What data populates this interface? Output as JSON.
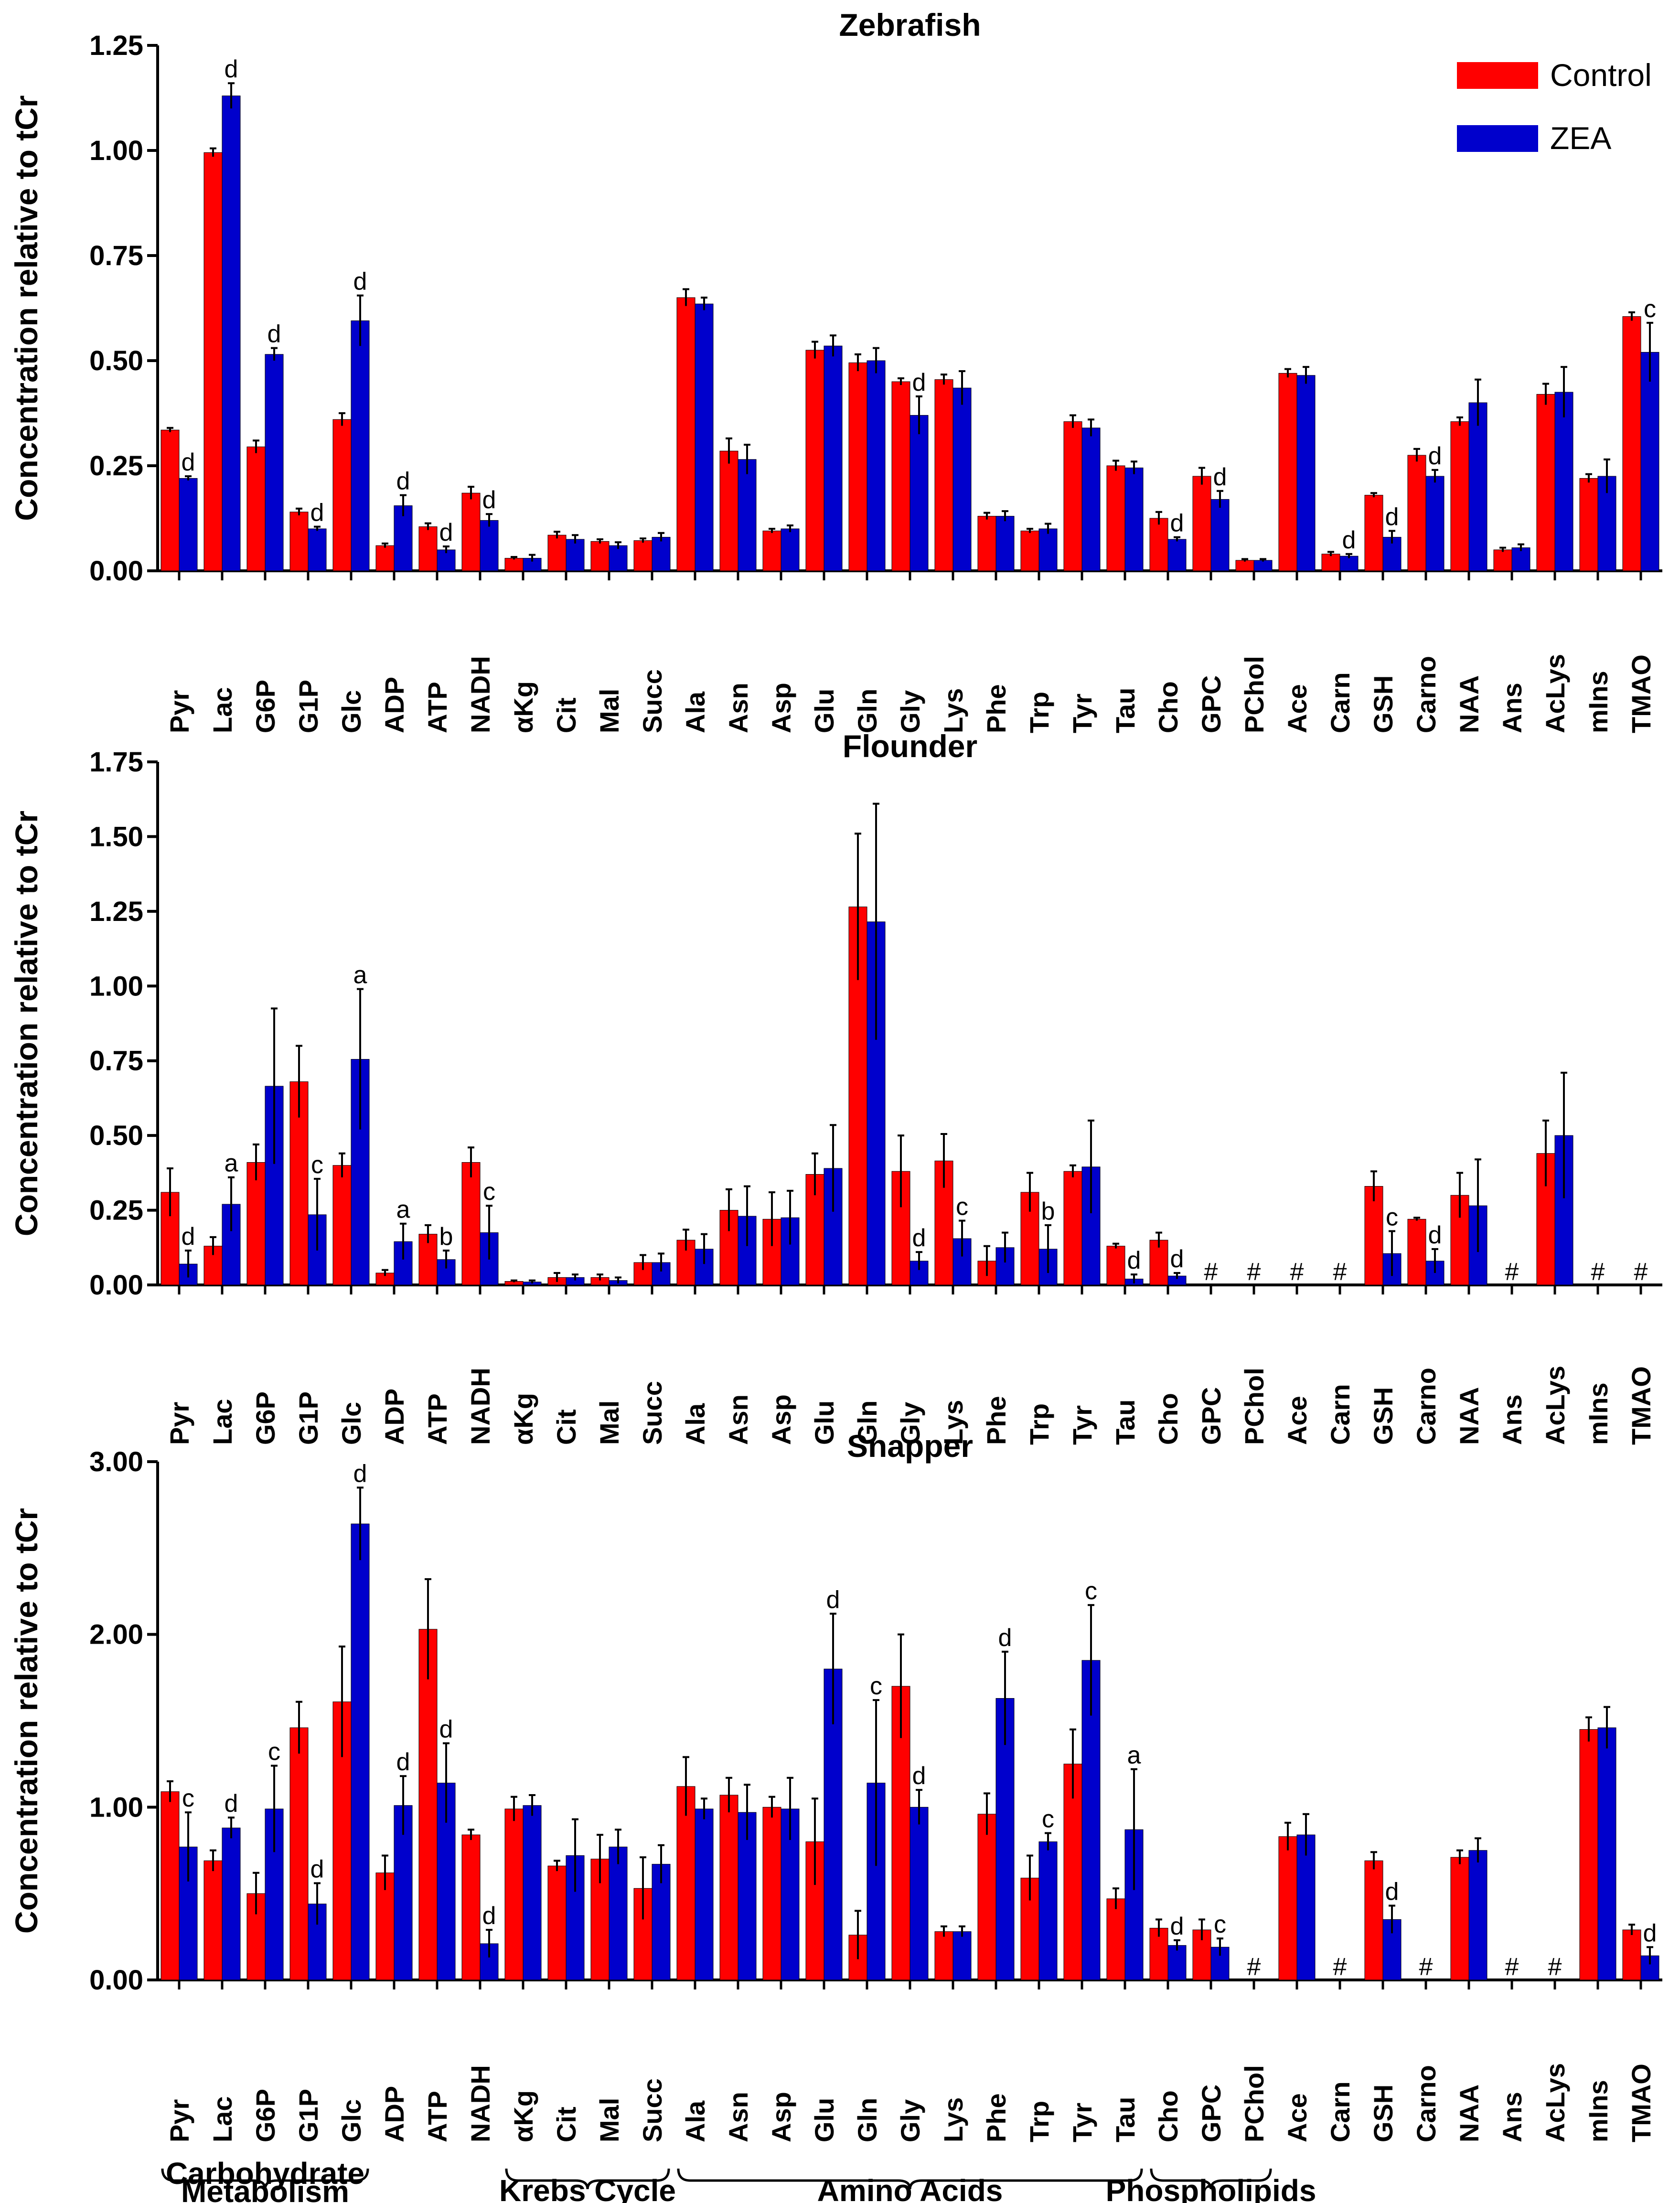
{
  "legend": {
    "control_label": "Control",
    "zea_label": "ZEA",
    "control_color": "#ff0000",
    "zea_color": "#0000cc"
  },
  "categories": [
    "Pyr",
    "Lac",
    "G6P",
    "G1P",
    "Glc",
    "ADP",
    "ATP",
    "NADH",
    "αKg",
    "Cit",
    "Mal",
    "Succ",
    "Ala",
    "Asn",
    "Asp",
    "Glu",
    "Gln",
    "Gly",
    "Lys",
    "Phe",
    "Trp",
    "Tyr",
    "Tau",
    "Cho",
    "GPC",
    "PChol",
    "Ace",
    "Carn",
    "GSH",
    "Carno",
    "NAA",
    "Ans",
    "AcLys",
    "mIns",
    "TMAO"
  ],
  "groups": [
    {
      "label_lines": [
        "Carbohydrate",
        "Metabolism"
      ],
      "from": 0,
      "to": 4
    },
    {
      "label_lines": [
        "Krebs Cycle"
      ],
      "from": 8,
      "to": 11
    },
    {
      "label_lines": [
        "Amino Acids"
      ],
      "from": 12,
      "to": 22
    },
    {
      "label_lines": [
        "Phospholipids"
      ],
      "from": 23,
      "to": 25
    }
  ],
  "chart_data": [
    {
      "type": "bar",
      "title": "Zebrafish",
      "ylabel": "Concentration relative to tCr",
      "ylim": [
        0,
        1.25
      ],
      "yticks": [
        "0.00",
        "0.25",
        "0.50",
        "0.75",
        "1.00",
        "1.25"
      ],
      "ytick_values": [
        0,
        0.25,
        0.5,
        0.75,
        1.0,
        1.25
      ],
      "series": [
        {
          "name": "Control",
          "values": [
            0.335,
            0.995,
            0.295,
            0.14,
            0.36,
            0.06,
            0.105,
            0.185,
            0.03,
            0.085,
            0.07,
            0.072,
            0.65,
            0.285,
            0.095,
            0.525,
            0.495,
            0.45,
            0.455,
            0.13,
            0.095,
            0.355,
            0.25,
            0.125,
            0.225,
            0.025,
            0.47,
            0.04,
            0.18,
            0.275,
            0.355,
            0.05,
            0.42,
            0.22,
            0.605
          ],
          "errors": [
            0.005,
            0.01,
            0.015,
            0.008,
            0.015,
            0.005,
            0.008,
            0.015,
            0.003,
            0.008,
            0.005,
            0.005,
            0.02,
            0.03,
            0.005,
            0.02,
            0.02,
            0.008,
            0.012,
            0.008,
            0.005,
            0.015,
            0.012,
            0.015,
            0.02,
            0.003,
            0.01,
            0.005,
            0.005,
            0.015,
            0.01,
            0.005,
            0.025,
            0.01,
            0.01
          ]
        },
        {
          "name": "ZEA",
          "values": [
            0.22,
            1.13,
            0.515,
            0.1,
            0.595,
            0.155,
            0.05,
            0.12,
            0.03,
            0.075,
            0.06,
            0.08,
            0.635,
            0.265,
            0.1,
            0.535,
            0.5,
            0.37,
            0.435,
            0.13,
            0.1,
            0.34,
            0.245,
            0.075,
            0.17,
            0.025,
            0.465,
            0.035,
            0.08,
            0.225,
            0.4,
            0.055,
            0.425,
            0.225,
            0.52
          ],
          "errors": [
            0.005,
            0.03,
            0.015,
            0.005,
            0.06,
            0.025,
            0.008,
            0.015,
            0.008,
            0.01,
            0.008,
            0.01,
            0.015,
            0.035,
            0.008,
            0.025,
            0.03,
            0.045,
            0.04,
            0.012,
            0.012,
            0.02,
            0.015,
            0.005,
            0.02,
            0.003,
            0.02,
            0.005,
            0.015,
            0.015,
            0.055,
            0.008,
            0.06,
            0.04,
            0.07
          ]
        }
      ],
      "annotations": [
        {
          "index": 0,
          "series": "ZEA",
          "text": "d"
        },
        {
          "index": 1,
          "series": "ZEA",
          "text": "d"
        },
        {
          "index": 2,
          "series": "ZEA",
          "text": "d"
        },
        {
          "index": 3,
          "series": "ZEA",
          "text": "d"
        },
        {
          "index": 4,
          "series": "ZEA",
          "text": "d"
        },
        {
          "index": 5,
          "series": "ZEA",
          "text": "d"
        },
        {
          "index": 6,
          "series": "ZEA",
          "text": "d"
        },
        {
          "index": 7,
          "series": "ZEA",
          "text": "d"
        },
        {
          "index": 17,
          "series": "ZEA",
          "text": "d"
        },
        {
          "index": 23,
          "series": "ZEA",
          "text": "d"
        },
        {
          "index": 24,
          "series": "ZEA",
          "text": "d"
        },
        {
          "index": 27,
          "series": "ZEA",
          "text": "d"
        },
        {
          "index": 28,
          "series": "ZEA",
          "text": "d"
        },
        {
          "index": 29,
          "series": "ZEA",
          "text": "d"
        },
        {
          "index": 34,
          "series": "ZEA",
          "text": "c"
        }
      ],
      "missing_markers": []
    },
    {
      "type": "bar",
      "title": "Flounder",
      "ylabel": "Concentration relative to tCr",
      "ylim": [
        0,
        1.75
      ],
      "yticks": [
        "0.00",
        "0.25",
        "0.50",
        "0.75",
        "1.00",
        "1.25",
        "1.50",
        "1.75"
      ],
      "ytick_values": [
        0,
        0.25,
        0.5,
        0.75,
        1.0,
        1.25,
        1.5,
        1.75
      ],
      "series": [
        {
          "name": "Control",
          "values": [
            0.31,
            0.13,
            0.41,
            0.68,
            0.4,
            0.04,
            0.17,
            0.41,
            0.012,
            0.025,
            0.025,
            0.075,
            0.15,
            0.25,
            0.22,
            0.37,
            1.265,
            0.38,
            0.415,
            0.08,
            0.31,
            0.38,
            0.13,
            0.15,
            null,
            null,
            null,
            null,
            0.33,
            0.22,
            0.3,
            null,
            0.44,
            null,
            null
          ],
          "errors": [
            0.08,
            0.03,
            0.06,
            0.12,
            0.04,
            0.01,
            0.03,
            0.05,
            0.003,
            0.015,
            0.01,
            0.025,
            0.035,
            0.07,
            0.09,
            0.07,
            0.245,
            0.12,
            0.09,
            0.05,
            0.065,
            0.02,
            0.008,
            0.025,
            0,
            0,
            0,
            0,
            0.05,
            0.005,
            0.075,
            0,
            0.11,
            0,
            0
          ]
        },
        {
          "name": "ZEA",
          "values": [
            0.07,
            0.27,
            0.665,
            0.235,
            0.755,
            0.145,
            0.085,
            0.175,
            0.01,
            0.025,
            0.015,
            0.075,
            0.12,
            0.23,
            0.225,
            0.39,
            1.215,
            0.08,
            0.155,
            0.125,
            0.12,
            0.395,
            0.02,
            0.03,
            null,
            null,
            null,
            null,
            0.105,
            0.08,
            0.265,
            null,
            0.5,
            null,
            null
          ],
          "errors": [
            0.045,
            0.09,
            0.26,
            0.12,
            0.235,
            0.06,
            0.03,
            0.09,
            0.005,
            0.01,
            0.01,
            0.03,
            0.05,
            0.1,
            0.09,
            0.145,
            0.395,
            0.03,
            0.06,
            0.05,
            0.08,
            0.155,
            0.015,
            0.01,
            0,
            0,
            0,
            0,
            0.075,
            0.04,
            0.155,
            0,
            0.21,
            0,
            0
          ]
        }
      ],
      "annotations": [
        {
          "index": 0,
          "series": "ZEA",
          "text": "d"
        },
        {
          "index": 1,
          "series": "ZEA",
          "text": "a"
        },
        {
          "index": 3,
          "series": "ZEA",
          "text": "c"
        },
        {
          "index": 4,
          "series": "ZEA",
          "text": "a"
        },
        {
          "index": 5,
          "series": "ZEA",
          "text": "a"
        },
        {
          "index": 6,
          "series": "ZEA",
          "text": "b"
        },
        {
          "index": 7,
          "series": "ZEA",
          "text": "c"
        },
        {
          "index": 17,
          "series": "ZEA",
          "text": "d"
        },
        {
          "index": 18,
          "series": "ZEA",
          "text": "c"
        },
        {
          "index": 20,
          "series": "ZEA",
          "text": "b"
        },
        {
          "index": 22,
          "series": "ZEA",
          "text": "d"
        },
        {
          "index": 23,
          "series": "ZEA",
          "text": "d"
        },
        {
          "index": 28,
          "series": "ZEA",
          "text": "c"
        },
        {
          "index": 29,
          "series": "ZEA",
          "text": "d"
        }
      ],
      "missing_markers": [
        {
          "index": 24,
          "text": "#"
        },
        {
          "index": 25,
          "text": "#"
        },
        {
          "index": 26,
          "text": "#"
        },
        {
          "index": 27,
          "text": "#"
        },
        {
          "index": 31,
          "text": "#"
        },
        {
          "index": 33,
          "text": "#"
        },
        {
          "index": 34,
          "text": "#"
        }
      ]
    },
    {
      "type": "bar",
      "title": "Snapper",
      "ylabel": "Concentration relative to tCr",
      "ylim": [
        0,
        3.0
      ],
      "yticks": [
        "0.00",
        "1.00",
        "2.00",
        "3.00"
      ],
      "ytick_values": [
        0,
        1.0,
        2.0,
        3.0
      ],
      "series": [
        {
          "name": "Control",
          "values": [
            1.09,
            0.69,
            0.5,
            1.46,
            1.61,
            0.62,
            2.03,
            0.84,
            0.99,
            0.66,
            0.7,
            0.53,
            1.12,
            1.07,
            1.0,
            0.8,
            0.26,
            1.7,
            0.28,
            0.96,
            0.59,
            1.25,
            0.47,
            0.3,
            0.29,
            null,
            0.83,
            null,
            0.69,
            null,
            0.71,
            null,
            null,
            1.45,
            0.29
          ],
          "errors": [
            0.06,
            0.06,
            0.12,
            0.15,
            0.32,
            0.1,
            0.29,
            0.03,
            0.07,
            0.03,
            0.14,
            0.18,
            0.17,
            0.1,
            0.06,
            0.25,
            0.14,
            0.3,
            0.03,
            0.12,
            0.13,
            0.2,
            0.06,
            0.05,
            0.06,
            0,
            0.08,
            0,
            0.05,
            0,
            0.04,
            0,
            0,
            0.07,
            0.03
          ]
        },
        {
          "name": "ZEA",
          "values": [
            0.77,
            0.88,
            0.99,
            0.44,
            2.64,
            1.01,
            1.14,
            0.21,
            1.01,
            0.72,
            0.77,
            0.67,
            0.99,
            0.97,
            0.99,
            1.8,
            1.14,
            1.0,
            0.28,
            1.63,
            0.8,
            1.85,
            0.87,
            0.2,
            0.19,
            null,
            0.84,
            null,
            0.35,
            null,
            0.75,
            null,
            null,
            1.46,
            0.14
          ],
          "errors": [
            0.2,
            0.06,
            0.25,
            0.12,
            0.21,
            0.17,
            0.23,
            0.08,
            0.06,
            0.21,
            0.1,
            0.11,
            0.06,
            0.16,
            0.18,
            0.32,
            0.48,
            0.1,
            0.03,
            0.27,
            0.05,
            0.32,
            0.35,
            0.03,
            0.05,
            0,
            0.12,
            0,
            0.08,
            0,
            0.07,
            0,
            0,
            0.12,
            0.05
          ]
        }
      ],
      "annotations": [
        {
          "index": 0,
          "series": "ZEA",
          "text": "c"
        },
        {
          "index": 1,
          "series": "ZEA",
          "text": "d"
        },
        {
          "index": 2,
          "series": "ZEA",
          "text": "c"
        },
        {
          "index": 3,
          "series": "ZEA",
          "text": "d"
        },
        {
          "index": 4,
          "series": "ZEA",
          "text": "d"
        },
        {
          "index": 5,
          "series": "ZEA",
          "text": "d"
        },
        {
          "index": 6,
          "series": "ZEA",
          "text": "d"
        },
        {
          "index": 7,
          "series": "ZEA",
          "text": "d"
        },
        {
          "index": 15,
          "series": "ZEA",
          "text": "d"
        },
        {
          "index": 16,
          "series": "ZEA",
          "text": "c"
        },
        {
          "index": 17,
          "series": "ZEA",
          "text": "d"
        },
        {
          "index": 19,
          "series": "ZEA",
          "text": "d"
        },
        {
          "index": 20,
          "series": "ZEA",
          "text": "c"
        },
        {
          "index": 21,
          "series": "ZEA",
          "text": "c"
        },
        {
          "index": 22,
          "series": "ZEA",
          "text": "a"
        },
        {
          "index": 23,
          "series": "ZEA",
          "text": "d"
        },
        {
          "index": 24,
          "series": "ZEA",
          "text": "c"
        },
        {
          "index": 28,
          "series": "ZEA",
          "text": "d"
        },
        {
          "index": 34,
          "series": "ZEA",
          "text": "d"
        }
      ],
      "missing_markers": [
        {
          "index": 25,
          "text": "#"
        },
        {
          "index": 27,
          "text": "#"
        },
        {
          "index": 29,
          "text": "#"
        },
        {
          "index": 31,
          "text": "#"
        },
        {
          "index": 32,
          "text": "#"
        }
      ]
    }
  ]
}
